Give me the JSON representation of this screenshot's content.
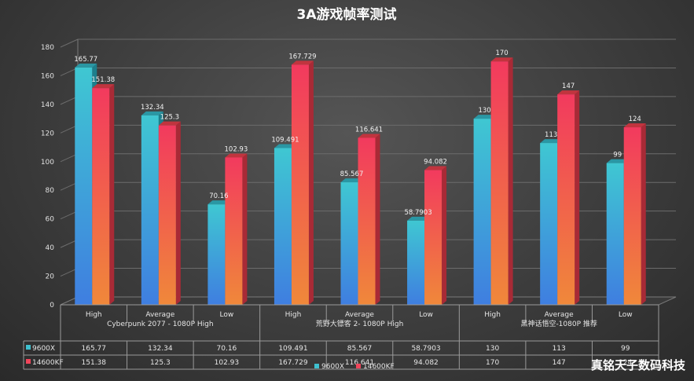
{
  "chart_data": {
    "type": "bar",
    "title": "3A游戏帧率测试",
    "ylim": [
      0,
      180
    ],
    "yticks": [
      "0",
      "20",
      "40",
      "60",
      "80",
      "100",
      "120",
      "140",
      "160",
      "180"
    ],
    "groups": [
      {
        "label": "Cyberpunk 2077 - 1080P High",
        "categories": [
          "High",
          "Average",
          "Low"
        ]
      },
      {
        "label": "荒野大镖客 2- 1080P High",
        "categories": [
          "High",
          "Average",
          "Low"
        ]
      },
      {
        "label": "黑神话悟空-1080P 推荐",
        "categories": [
          "High",
          "Average",
          "Low"
        ]
      }
    ],
    "series": [
      {
        "name": "9600X",
        "color": "#3fc0cf",
        "values": [
          165.77,
          132.34,
          70.16,
          109.491,
          85.567,
          58.7903,
          130,
          113,
          99
        ],
        "labels": [
          "165.77",
          "132.34",
          "70.16",
          "109.491",
          "85.567",
          "58.7903",
          "130",
          "113",
          "99"
        ]
      },
      {
        "name": "14600KF",
        "color": "#f0455a",
        "values": [
          151.38,
          125.3,
          102.93,
          167.729,
          116.641,
          94.082,
          170,
          147,
          124
        ],
        "labels": [
          "151.38",
          "125.3",
          "102.93",
          "167.729",
          "116.641",
          "94.082",
          "170",
          "147",
          "124"
        ]
      }
    ],
    "grid": true,
    "legend": "bottom",
    "data_table": true
  },
  "watermark": "真铭天子数码科技"
}
